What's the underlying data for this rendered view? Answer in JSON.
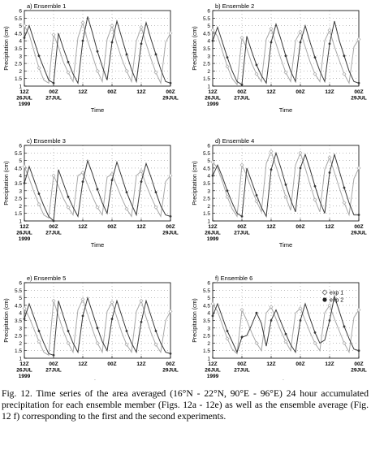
{
  "figure": {
    "ylabel": "Precipitation (cm)",
    "xlabel": "Time",
    "yticks": [
      "1",
      "1.5",
      "2",
      "2.5",
      "3",
      "3.5",
      "4",
      "4.5",
      "5",
      "5.5",
      "6"
    ],
    "xticks": [
      {
        "lines": [
          "12Z",
          "26JUL",
          "1999"
        ]
      },
      {
        "lines": [
          "00Z",
          "27JUL"
        ]
      },
      {
        "lines": [
          "12Z"
        ]
      },
      {
        "lines": [
          "00Z"
        ]
      },
      {
        "lines": [
          "12Z"
        ]
      },
      {
        "lines": [
          "00Z",
          "29JUL"
        ]
      }
    ],
    "legend": {
      "exp1": "exp 1",
      "exp2": "exp 2"
    },
    "colors": {
      "exp1": "#a8a8a8",
      "exp2": "#3a3a3a",
      "axis": "#000000",
      "grid": "#999999"
    }
  },
  "chart_data": [
    {
      "type": "line",
      "title": "a) Ensemble 1",
      "ylim": [
        1,
        6
      ],
      "xticks_index": [
        0,
        6,
        12,
        18,
        24,
        30
      ],
      "series": [
        {
          "name": "exp 1",
          "values": [
            5.0,
            4.4,
            3.3,
            2.2,
            1.4,
            1.2,
            4.4,
            3.6,
            2.6,
            1.9,
            1.3,
            4.2,
            5.2,
            4.0,
            3.0,
            2.0,
            1.3,
            4.1,
            5.0,
            3.8,
            2.8,
            2.0,
            1.3,
            4.0,
            4.9,
            3.8,
            2.8,
            1.9,
            1.2,
            3.9,
            4.5
          ]
        },
        {
          "name": "exp 2",
          "values": [
            4.2,
            5.0,
            4.0,
            3.0,
            2.2,
            1.4,
            1.2,
            4.5,
            3.5,
            2.6,
            1.8,
            1.2,
            4.0,
            5.6,
            4.5,
            3.3,
            2.3,
            1.4,
            3.9,
            5.3,
            4.2,
            3.1,
            2.1,
            1.3,
            3.8,
            5.2,
            4.1,
            3.1,
            2.1,
            1.3,
            1.2
          ]
        }
      ]
    },
    {
      "type": "line",
      "title": "b) Ensemble 2",
      "ylim": [
        1,
        6
      ],
      "xticks_index": [
        0,
        6,
        12,
        18,
        24,
        30
      ],
      "series": [
        {
          "name": "exp 1",
          "values": [
            4.7,
            4.3,
            3.3,
            2.3,
            1.5,
            1.1,
            4.2,
            3.5,
            2.5,
            1.8,
            1.3,
            4.1,
            4.8,
            3.8,
            2.8,
            1.9,
            1.3,
            4.0,
            4.6,
            3.6,
            2.6,
            1.8,
            1.3,
            4.0,
            4.7,
            3.6,
            2.7,
            1.8,
            1.2,
            3.6,
            4.1
          ]
        },
        {
          "name": "exp 2",
          "values": [
            4.0,
            4.9,
            3.9,
            2.9,
            2.0,
            1.3,
            1.1,
            4.3,
            3.3,
            2.4,
            1.7,
            1.2,
            3.9,
            5.1,
            4.1,
            3.0,
            2.0,
            1.3,
            3.9,
            5.0,
            3.9,
            2.9,
            2.0,
            1.3,
            3.8,
            5.3,
            4.0,
            3.0,
            2.0,
            1.3,
            1.2
          ]
        }
      ]
    },
    {
      "type": "line",
      "title": "c) Ensemble 3",
      "ylim": [
        1,
        6
      ],
      "xticks_index": [
        0,
        6,
        12,
        18,
        24,
        30
      ],
      "series": [
        {
          "name": "exp 1",
          "values": [
            4.6,
            3.8,
            2.9,
            2.1,
            1.4,
            1.2,
            4.0,
            3.3,
            2.5,
            1.9,
            1.4,
            4.0,
            4.2,
            3.4,
            2.6,
            1.9,
            1.4,
            3.9,
            4.1,
            3.3,
            2.5,
            1.8,
            1.3,
            4.0,
            4.3,
            3.4,
            2.6,
            1.9,
            1.3,
            3.6,
            4.0
          ]
        },
        {
          "name": "exp 2",
          "values": [
            3.5,
            4.6,
            3.7,
            2.8,
            2.0,
            1.3,
            1.0,
            4.4,
            3.5,
            2.6,
            1.9,
            1.3,
            3.6,
            5.0,
            4.1,
            3.1,
            2.2,
            1.5,
            3.7,
            4.9,
            3.9,
            2.9,
            2.1,
            1.4,
            3.6,
            4.8,
            3.9,
            2.9,
            2.0,
            1.4,
            1.3
          ]
        }
      ]
    },
    {
      "type": "line",
      "title": "d) Ensemble 4",
      "ylim": [
        1,
        6
      ],
      "xticks_index": [
        0,
        6,
        12,
        18,
        24,
        30
      ],
      "series": [
        {
          "name": "exp 1",
          "values": [
            4.9,
            4.5,
            3.6,
            2.6,
            1.8,
            1.3,
            4.7,
            4.0,
            3.1,
            2.3,
            1.6,
            4.8,
            5.6,
            4.6,
            3.6,
            2.6,
            1.7,
            4.7,
            5.5,
            4.5,
            3.4,
            2.4,
            1.6,
            4.4,
            5.2,
            4.2,
            3.2,
            2.2,
            1.4,
            3.8,
            4.5
          ]
        },
        {
          "name": "exp 2",
          "values": [
            4.0,
            4.7,
            3.9,
            3.0,
            2.2,
            1.5,
            1.3,
            4.5,
            3.6,
            2.7,
            1.9,
            1.3,
            4.4,
            5.5,
            4.5,
            3.4,
            2.4,
            1.6,
            4.5,
            5.4,
            4.4,
            3.3,
            2.3,
            1.5,
            4.2,
            5.4,
            4.3,
            3.2,
            2.2,
            1.4,
            1.4
          ]
        }
      ]
    },
    {
      "type": "line",
      "title": "e) Ensemble 5",
      "ylim": [
        1,
        6
      ],
      "xticks_index": [
        0,
        6,
        12,
        18,
        24,
        30
      ],
      "series": [
        {
          "name": "exp 1",
          "values": [
            4.3,
            3.7,
            2.9,
            2.1,
            1.4,
            1.2,
            4.8,
            3.8,
            2.8,
            2.0,
            1.4,
            4.2,
            4.9,
            3.9,
            2.9,
            2.0,
            1.4,
            4.1,
            4.7,
            3.7,
            2.7,
            1.9,
            1.4,
            4.1,
            4.8,
            3.7,
            2.7,
            1.9,
            1.4,
            3.5,
            4.1
          ]
        },
        {
          "name": "exp 2",
          "values": [
            3.6,
            4.6,
            3.7,
            2.8,
            2.0,
            1.3,
            1.2,
            4.8,
            3.8,
            2.8,
            2.0,
            1.4,
            3.8,
            5.0,
            4.0,
            3.0,
            2.1,
            1.5,
            3.6,
            4.8,
            3.8,
            2.8,
            2.0,
            1.4,
            3.4,
            4.8,
            3.8,
            2.8,
            2.0,
            1.4,
            1.3
          ]
        }
      ]
    },
    {
      "type": "line",
      "title": "f) Ensemble 6",
      "ylim": [
        1,
        6
      ],
      "xticks_index": [
        0,
        6,
        12,
        18,
        24,
        30
      ],
      "series": [
        {
          "name": "exp 1",
          "values": [
            4.6,
            4.1,
            3.2,
            2.3,
            1.6,
            1.3,
            4.2,
            3.5,
            2.7,
            2.0,
            1.5,
            4.0,
            4.4,
            3.6,
            2.8,
            2.1,
            1.5,
            4.0,
            4.3,
            3.5,
            2.7,
            2.0,
            1.5,
            4.0,
            4.5,
            3.6,
            2.8,
            2.0,
            1.4,
            3.7,
            4.2
          ]
        },
        {
          "name": "exp 2",
          "values": [
            3.8,
            4.6,
            3.7,
            2.8,
            2.1,
            1.4,
            2.4,
            2.5,
            3.2,
            4.0,
            3.3,
            1.8,
            3.5,
            4.2,
            3.4,
            2.6,
            1.9,
            1.4,
            3.5,
            4.6,
            3.6,
            2.7,
            2.0,
            2.2,
            3.5,
            5.1,
            4.1,
            3.1,
            2.3,
            1.6,
            1.5
          ]
        }
      ],
      "legend_position": "top-right"
    }
  ],
  "caption": "Fig. 12. Time series of the area averaged (16°N - 22°N, 90°E - 96°E) 24 hour accumulated precipitation for each ensemble member (Figs. 12a - 12e) as well as the ensemble average (Fig. 12 f) corresponding to the first and the second experiments."
}
